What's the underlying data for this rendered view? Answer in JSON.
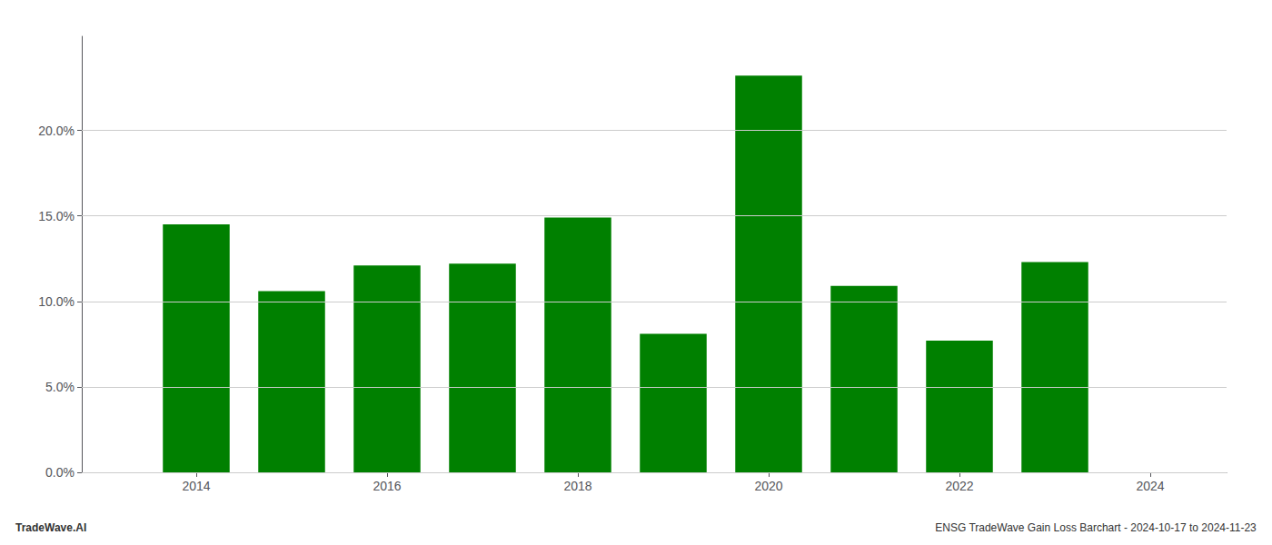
{
  "chart_data": {
    "type": "bar",
    "x": [
      2014,
      2015,
      2016,
      2017,
      2018,
      2019,
      2020,
      2021,
      2022,
      2023
    ],
    "values": [
      0.145,
      0.106,
      0.121,
      0.122,
      0.149,
      0.081,
      0.232,
      0.109,
      0.077,
      0.123
    ],
    "color": "#008000",
    "xlim": [
      2012.8,
      2024.8
    ],
    "xticks": [
      2014,
      2016,
      2018,
      2020,
      2022,
      2024
    ],
    "ylim": [
      0,
      0.255
    ],
    "yticks": [
      {
        "value": 0.0,
        "label": "0.0%"
      },
      {
        "value": 0.05,
        "label": "5.0%"
      },
      {
        "value": 0.1,
        "label": "10.0%"
      },
      {
        "value": 0.15,
        "label": "15.0%"
      },
      {
        "value": 0.2,
        "label": "20.0%"
      }
    ],
    "grid": true,
    "annotations": [
      "TradeWave.AI",
      "ENSG TradeWave Gain Loss Barchart - 2024-10-17 to 2024-11-23"
    ]
  }
}
